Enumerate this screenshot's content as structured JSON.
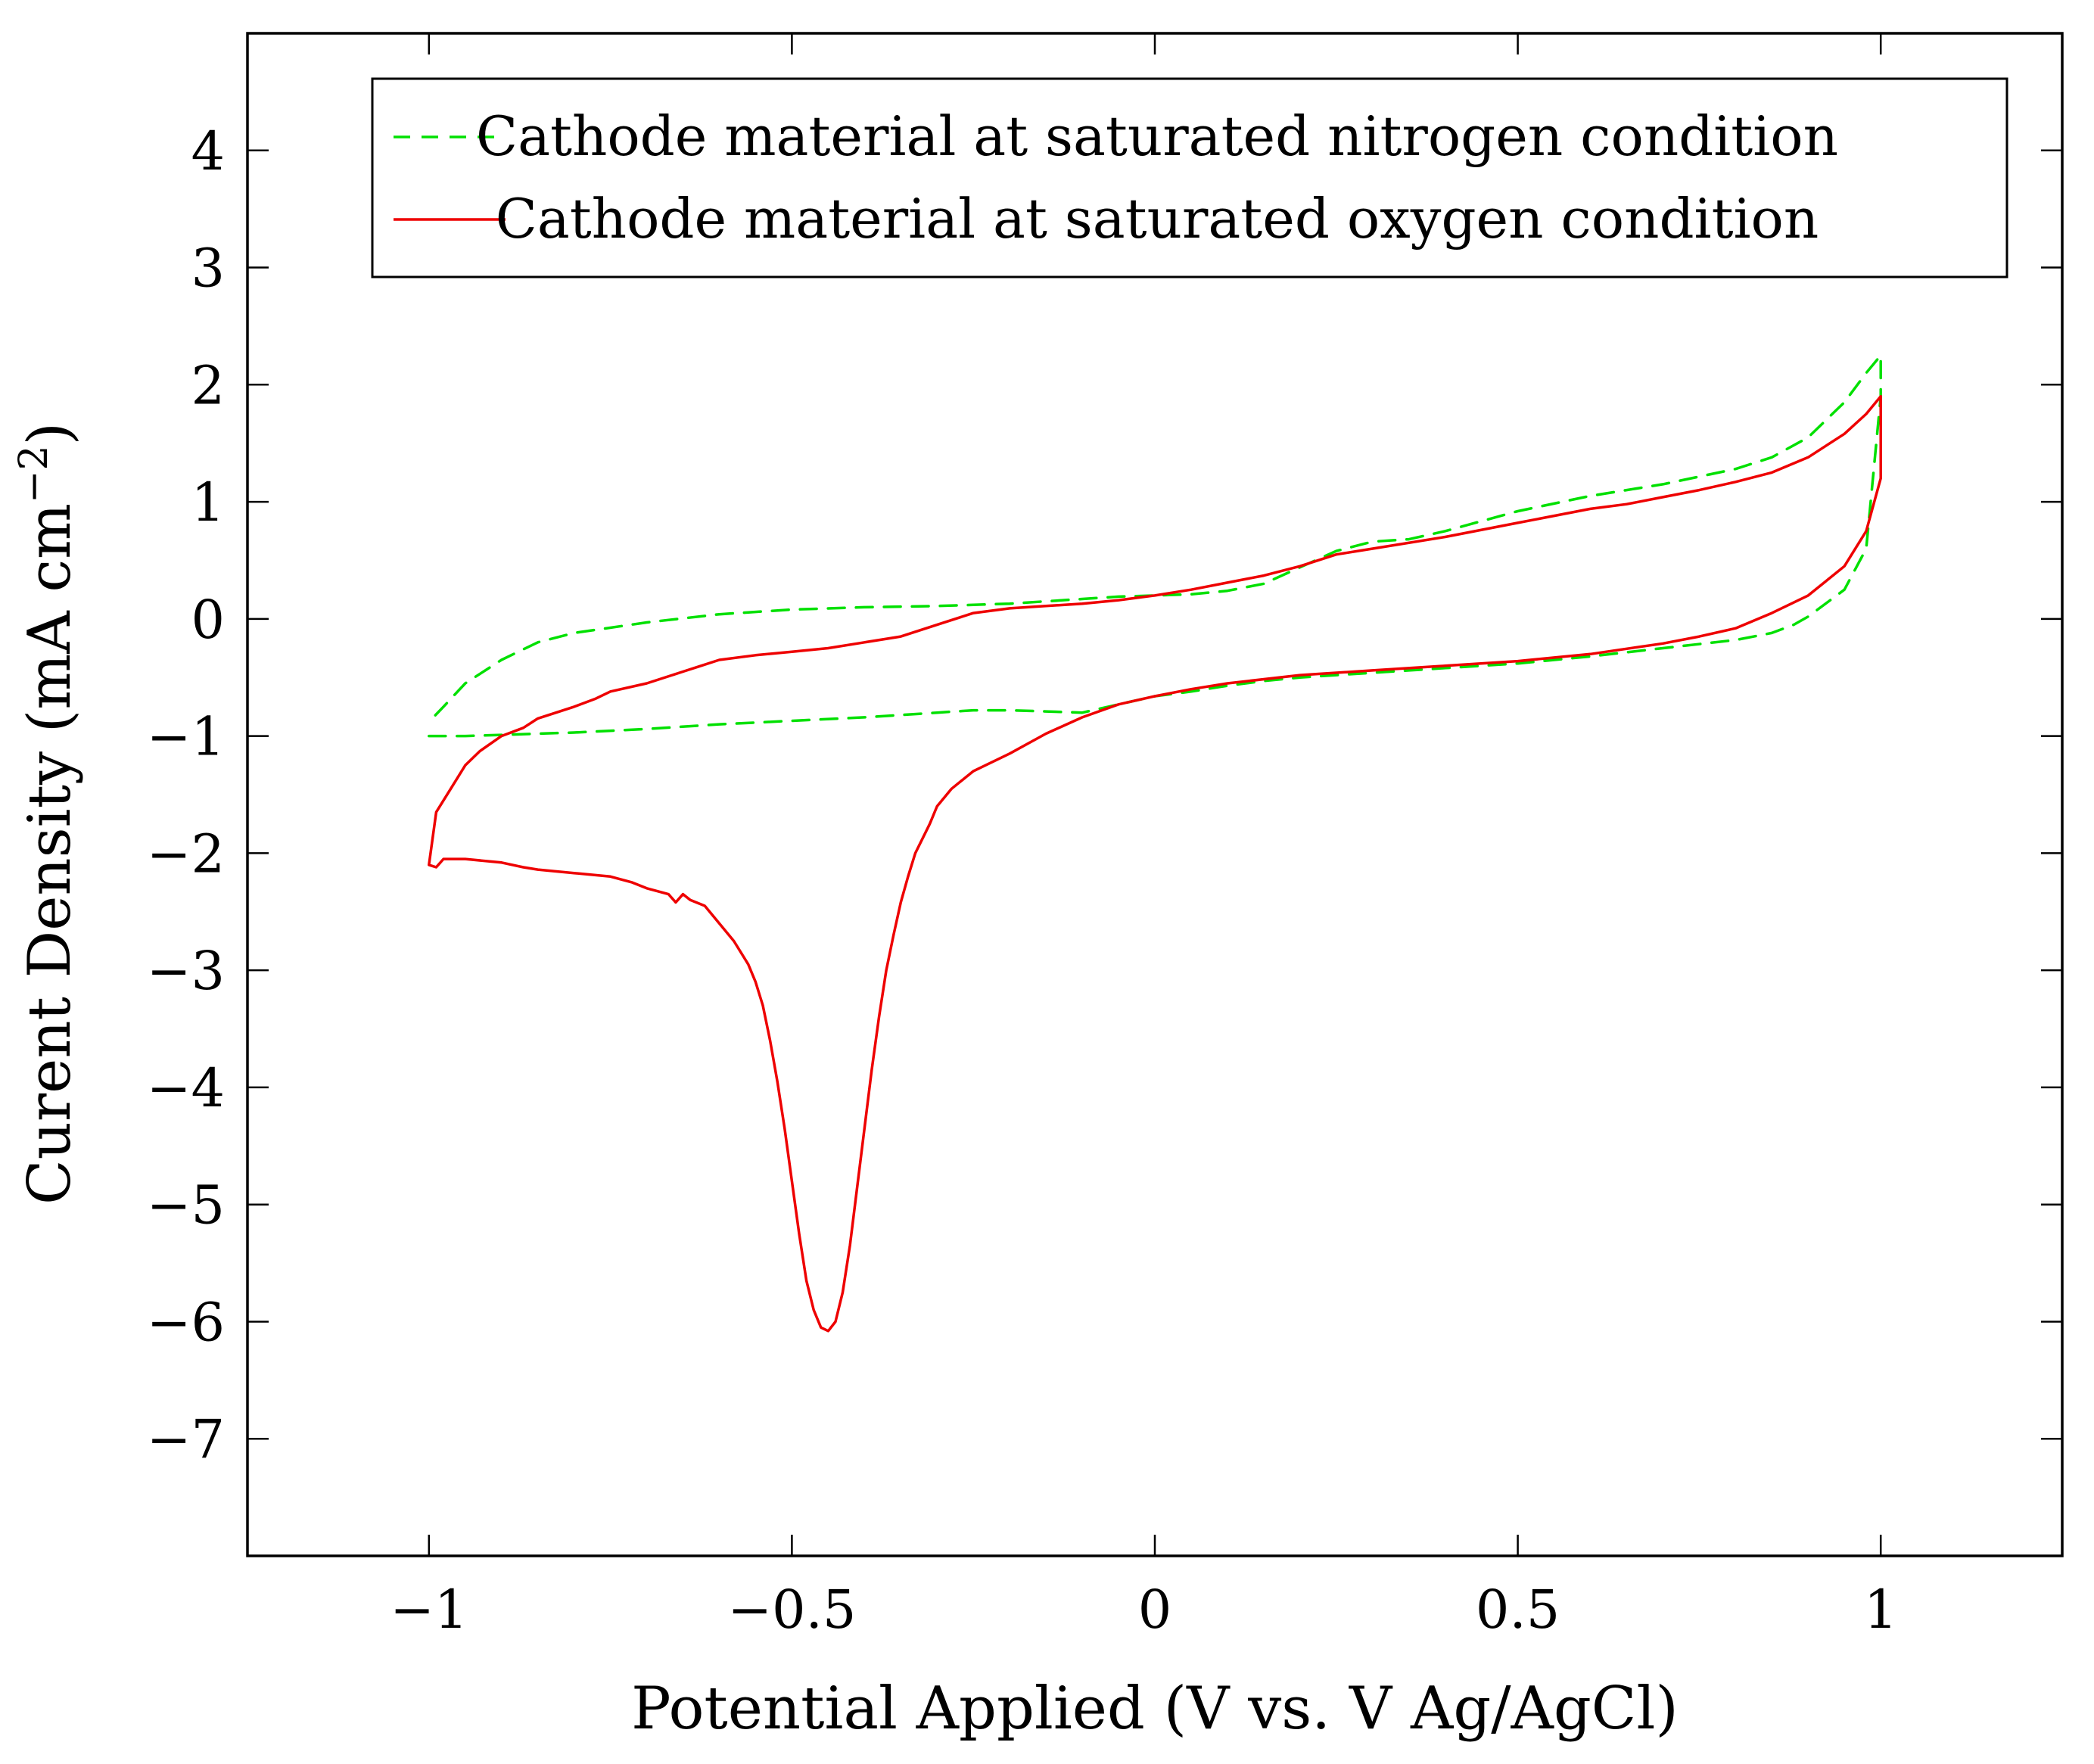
{
  "chart_data": {
    "type": "line",
    "title": "",
    "xlabel": "Potential Applied (V vs. V Ag/AgCl)",
    "ylabel_main": "Curent Density (mA cm",
    "ylabel_sup": "−2",
    "ylabel_close": ")",
    "xlim": [
      -1.25,
      1.25
    ],
    "ylim": [
      -8,
      5
    ],
    "xticks": [
      -1,
      -0.5,
      0,
      0.5,
      1
    ],
    "xtick_labels": [
      "−1",
      "−0.5",
      "0",
      "0.5",
      "1"
    ],
    "yticks": [
      4,
      3,
      2,
      1,
      0,
      -1,
      -2,
      -3,
      -4,
      -5,
      -6,
      -7
    ],
    "ytick_labels": [
      "4",
      "3",
      "2",
      "1",
      "0",
      "−1",
      "−2",
      "−3",
      "−4",
      "−5",
      "−6",
      "−7"
    ],
    "legend_position": "top-right",
    "series": [
      {
        "name": "Cathode material at saturated nitrogen condition",
        "color": "#00e000",
        "dash": true,
        "x": [
          -1.0,
          -0.95,
          -0.9,
          -0.85,
          -0.8,
          -0.7,
          -0.6,
          -0.5,
          -0.4,
          -0.3,
          -0.25,
          -0.2,
          -0.15,
          -0.1,
          -0.05,
          0.0,
          0.05,
          0.1,
          0.15,
          0.2,
          0.25,
          0.3,
          0.35,
          0.4,
          0.45,
          0.5,
          0.6,
          0.7,
          0.8,
          0.85,
          0.88,
          0.9,
          0.95,
          0.98,
          1.0,
          1.0,
          0.98,
          0.95,
          0.9,
          0.85,
          0.8,
          0.7,
          0.6,
          0.5,
          0.4,
          0.35,
          0.3,
          0.25,
          0.2,
          0.15,
          0.1,
          0.05,
          0.0,
          -0.05,
          -0.1,
          -0.15,
          -0.2,
          -0.25,
          -0.3,
          -0.4,
          -0.5,
          -0.6,
          -0.7,
          -0.8,
          -0.85,
          -0.9,
          -0.95,
          -0.98,
          -1.0
        ],
        "y": [
          -1.0,
          -1.0,
          -0.99,
          -0.98,
          -0.97,
          -0.94,
          -0.9,
          -0.87,
          -0.84,
          -0.8,
          -0.78,
          -0.78,
          -0.79,
          -0.8,
          -0.73,
          -0.66,
          -0.62,
          -0.57,
          -0.53,
          -0.5,
          -0.48,
          -0.46,
          -0.44,
          -0.42,
          -0.4,
          -0.38,
          -0.32,
          -0.25,
          -0.18,
          -0.12,
          -0.05,
          0.02,
          0.25,
          0.6,
          1.9,
          2.25,
          2.1,
          1.85,
          1.55,
          1.38,
          1.28,
          1.15,
          1.05,
          0.92,
          0.75,
          0.68,
          0.66,
          0.58,
          0.44,
          0.3,
          0.24,
          0.21,
          0.2,
          0.19,
          0.17,
          0.15,
          0.13,
          0.12,
          0.11,
          0.1,
          0.08,
          0.04,
          -0.03,
          -0.12,
          -0.2,
          -0.35,
          -0.55,
          -0.75,
          -0.88
        ]
      },
      {
        "name": "Cathode material at saturated oxygen condition",
        "color": "#ee0000",
        "dash": false,
        "x": [
          -1.0,
          -0.99,
          -0.98,
          -0.95,
          -0.9,
          -0.87,
          -0.85,
          -0.8,
          -0.75,
          -0.72,
          -0.7,
          -0.67,
          -0.66,
          -0.65,
          -0.64,
          -0.62,
          -0.6,
          -0.58,
          -0.56,
          -0.55,
          -0.54,
          -0.53,
          -0.52,
          -0.51,
          -0.5,
          -0.49,
          -0.48,
          -0.47,
          -0.46,
          -0.45,
          -0.44,
          -0.43,
          -0.42,
          -0.41,
          -0.4,
          -0.39,
          -0.38,
          -0.37,
          -0.36,
          -0.35,
          -0.34,
          -0.33,
          -0.31,
          -0.3,
          -0.28,
          -0.25,
          -0.2,
          -0.15,
          -0.1,
          -0.05,
          0.0,
          0.05,
          0.1,
          0.2,
          0.3,
          0.4,
          0.5,
          0.6,
          0.7,
          0.75,
          0.8,
          0.85,
          0.9,
          0.95,
          0.98,
          1.0,
          1.0,
          0.98,
          0.95,
          0.9,
          0.85,
          0.8,
          0.75,
          0.7,
          0.65,
          0.6,
          0.5,
          0.4,
          0.3,
          0.25,
          0.2,
          0.15,
          0.1,
          0.05,
          0.0,
          -0.05,
          -0.1,
          -0.15,
          -0.2,
          -0.25,
          -0.3,
          -0.35,
          -0.4,
          -0.45,
          -0.5,
          -0.55,
          -0.6,
          -0.63,
          -0.65,
          -0.7,
          -0.75,
          -0.77,
          -0.8,
          -0.85,
          -0.87,
          -0.9,
          -0.93,
          -0.95,
          -0.97,
          -0.99,
          -1.0
        ],
        "y": [
          -2.1,
          -2.12,
          -2.05,
          -2.05,
          -2.08,
          -2.12,
          -2.14,
          -2.17,
          -2.2,
          -2.25,
          -2.3,
          -2.35,
          -2.42,
          -2.35,
          -2.4,
          -2.45,
          -2.6,
          -2.75,
          -2.95,
          -3.1,
          -3.3,
          -3.6,
          -3.95,
          -4.35,
          -4.8,
          -5.25,
          -5.65,
          -5.9,
          -6.05,
          -6.08,
          -6.0,
          -5.75,
          -5.35,
          -4.85,
          -4.35,
          -3.85,
          -3.4,
          -3.0,
          -2.7,
          -2.42,
          -2.2,
          -2.0,
          -1.75,
          -1.6,
          -1.45,
          -1.3,
          -1.15,
          -0.98,
          -0.84,
          -0.73,
          -0.66,
          -0.6,
          -0.55,
          -0.48,
          -0.44,
          -0.4,
          -0.36,
          -0.3,
          -0.21,
          -0.15,
          -0.08,
          0.05,
          0.2,
          0.45,
          0.75,
          1.2,
          1.9,
          1.75,
          1.58,
          1.38,
          1.25,
          1.17,
          1.1,
          1.04,
          0.98,
          0.94,
          0.82,
          0.7,
          0.6,
          0.55,
          0.45,
          0.37,
          0.31,
          0.25,
          0.2,
          0.16,
          0.13,
          0.11,
          0.09,
          0.05,
          -0.05,
          -0.15,
          -0.2,
          -0.25,
          -0.28,
          -0.31,
          -0.35,
          -0.41,
          -0.45,
          -0.55,
          -0.62,
          -0.68,
          -0.75,
          -0.85,
          -0.93,
          -1.0,
          -1.13,
          -1.25,
          -1.45,
          -1.65,
          -2.1
        ]
      }
    ]
  }
}
